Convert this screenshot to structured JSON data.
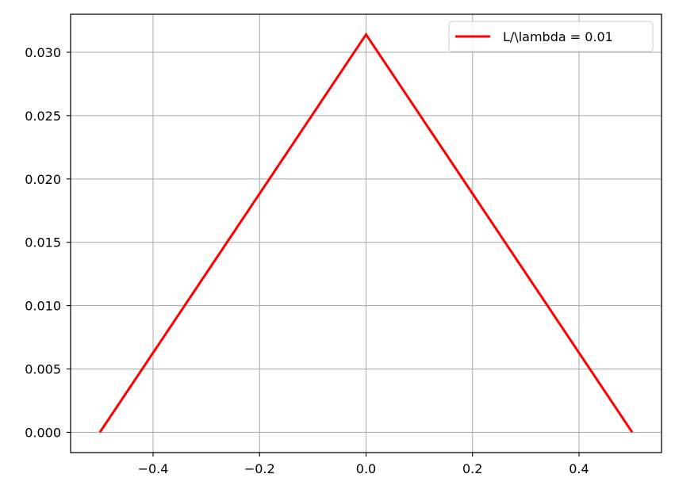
{
  "chart_data": {
    "type": "line",
    "title": "",
    "xlabel": "",
    "ylabel": "",
    "xlim": [
      -0.555,
      0.555
    ],
    "ylim": [
      -0.0016,
      0.033
    ],
    "grid": true,
    "legend_position": "top-right",
    "x_ticks": [
      -0.4,
      -0.2,
      0.0,
      0.2,
      0.4
    ],
    "x_tick_labels": [
      "−0.4",
      "−0.2",
      "0.0",
      "0.2",
      "0.4"
    ],
    "y_ticks": [
      0.0,
      0.005,
      0.01,
      0.015,
      0.02,
      0.025,
      0.03
    ],
    "y_tick_labels": [
      "0.000",
      "0.005",
      "0.010",
      "0.015",
      "0.020",
      "0.025",
      "0.030"
    ],
    "series": [
      {
        "name": "L/\\lambda = 0.01",
        "color": "#ff0000",
        "x": [
          -0.5,
          0.0,
          0.5
        ],
        "y": [
          0.0,
          0.0314,
          0.0
        ]
      }
    ]
  }
}
